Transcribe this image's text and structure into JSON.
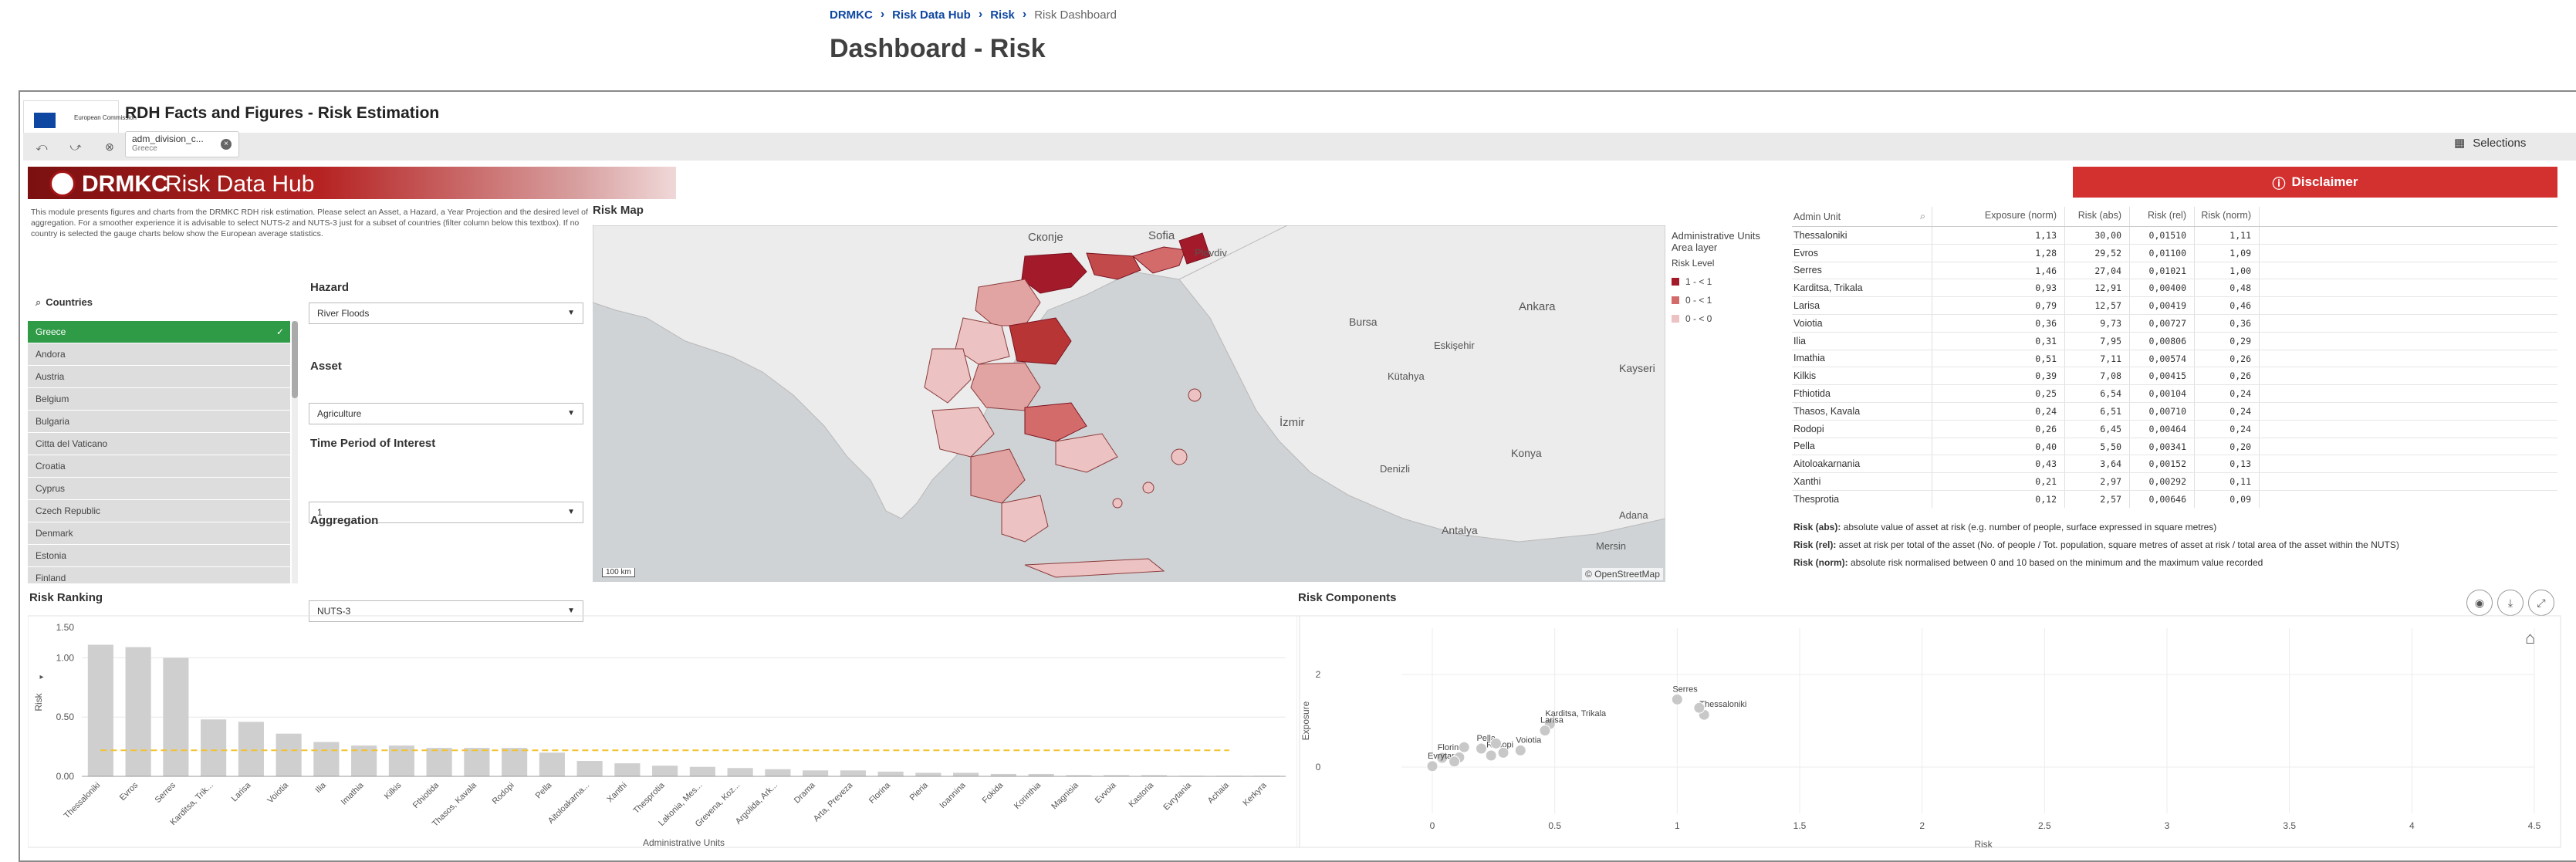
{
  "breadcrumb": {
    "items": [
      "DRMKC",
      "Risk Data Hub",
      "Risk"
    ],
    "current": "Risk Dashboard"
  },
  "page_title": "Dashboard - Risk",
  "app": {
    "title": "RDH Facts and Figures - Risk Estimation",
    "ec_label": "European Commission",
    "selection_chip": {
      "field": "adm_division_c...",
      "value": "Greece"
    },
    "selections_label": "Selections"
  },
  "banner": {
    "brand": "DRMKC",
    "name": "Risk Data Hub"
  },
  "disclaimer_label": "Disclaimer",
  "intro_text": "This module presents figures and charts from the DRMKC RDH risk estimation. Please select an Asset, a Hazard, a Year Projection and the desired level of aggregation. For a smoother experience it is advisable to select NUTS-2 and NUTS-3 just for a subset of countries (filter column below this textbox). If no country is selected the gauge charts below show the European average statistics.",
  "countries": {
    "label": "Countries",
    "items": [
      "Greece",
      "Andora",
      "Austria",
      "Belgium",
      "Bulgaria",
      "Citta del Vaticano",
      "Croatia",
      "Cyprus",
      "Czech Republic",
      "Denmark",
      "Estonia",
      "Finland"
    ],
    "selected": "Greece"
  },
  "filters": {
    "hazard": {
      "label": "Hazard",
      "value": "River Floods"
    },
    "asset": {
      "label": "Asset",
      "value": "Agriculture"
    },
    "time": {
      "label": "Time Period of Interest",
      "value": "1"
    },
    "aggregation": {
      "label": "Aggregation",
      "value": "NUTS-3"
    }
  },
  "map": {
    "title": "Risk Map",
    "legend_title": "Administrative Units Area layer",
    "legend_sub": "Risk Level",
    "legend_items": [
      {
        "label": "1 - < 1",
        "color": "#a31a2a"
      },
      {
        "label": "0 - < 1",
        "color": "#d46b6b"
      },
      {
        "label": "0 - < 0",
        "color": "#ecc2c2"
      }
    ],
    "attribution": "© OpenStreetMap",
    "scale": "100 km",
    "places": [
      "Скопje",
      "Sofia",
      "Plovdiv",
      "Ankara",
      "İzmir",
      "Bursa",
      "Kayseri",
      "Konya",
      "Antalya",
      "Adana",
      "Mersin",
      "Denizli",
      "Eskişehir",
      "Kütahya"
    ]
  },
  "table": {
    "headers": [
      "Admin Unit",
      "Exposure (norm)",
      "Risk (abs)",
      "Risk (rel)",
      "Risk (norm)"
    ],
    "rows": [
      [
        "Thessaloniki",
        "1,13",
        "30,00",
        "0,01510",
        "1,11"
      ],
      [
        "Evros",
        "1,28",
        "29,52",
        "0,01100",
        "1,09"
      ],
      [
        "Serres",
        "1,46",
        "27,04",
        "0,01021",
        "1,00"
      ],
      [
        "Karditsa, Trikala",
        "0,93",
        "12,91",
        "0,00400",
        "0,48"
      ],
      [
        "Larisa",
        "0,79",
        "12,57",
        "0,00419",
        "0,46"
      ],
      [
        "Voiotia",
        "0,36",
        "9,73",
        "0,00727",
        "0,36"
      ],
      [
        "Ilia",
        "0,31",
        "7,95",
        "0,00806",
        "0,29"
      ],
      [
        "Imathia",
        "0,51",
        "7,11",
        "0,00574",
        "0,26"
      ],
      [
        "Kilkis",
        "0,39",
        "7,08",
        "0,00415",
        "0,26"
      ],
      [
        "Fthiotida",
        "0,25",
        "6,54",
        "0,00104",
        "0,24"
      ],
      [
        "Thasos, Kavala",
        "0,24",
        "6,51",
        "0,00710",
        "0,24"
      ],
      [
        "Rodopi",
        "0,26",
        "6,45",
        "0,00464",
        "0,24"
      ],
      [
        "Pella",
        "0,40",
        "5,50",
        "0,00341",
        "0,20"
      ],
      [
        "Aitoloakarnania",
        "0,43",
        "3,64",
        "0,00152",
        "0,13"
      ],
      [
        "Xanthi",
        "0,21",
        "2,97",
        "0,00292",
        "0,11"
      ],
      [
        "Thesprotia",
        "0,12",
        "2,57",
        "0,00646",
        "0,09"
      ]
    ]
  },
  "notes": [
    {
      "term": "Risk (abs):",
      "text": " absolute value of asset at risk (e.g. number of people, surface expressed in square metres)"
    },
    {
      "term": "Risk (rel):",
      "text": " asset at risk per total of the asset (No. of people / Tot. population, square metres of asset at risk / total area of the asset within the NUTS)"
    },
    {
      "term": "Risk (norm):",
      "text": " absolute risk normalised between 0 and 10 based on the minimum and the maximum value recorded"
    }
  ],
  "chart_data": [
    {
      "type": "bar",
      "title": "Risk Ranking",
      "xlabel": "Administrative Units",
      "ylabel": "Risk",
      "ylim": [
        0,
        1.25
      ],
      "yticks": [
        "0.00",
        "0.50",
        "1.00"
      ],
      "yticks_extra": "1.50",
      "avg_line": 0.22,
      "categories": [
        "Thessaloniki",
        "Evros",
        "Serres",
        "Karditsa, Trik...",
        "Larisa",
        "Voiotia",
        "Ilia",
        "Imathia",
        "Kilkis",
        "Fthiotida",
        "Thasos, Kavala",
        "Rodopi",
        "Pella",
        "Aitoloakarna...",
        "Xanthi",
        "Thesprotia",
        "Lakonia, Mes...",
        "Grevena, Koz...",
        "Argolida, Ark...",
        "Drama",
        "Arta, Preveza",
        "Florina",
        "Pieria",
        "Ioannina",
        "Fokida",
        "Korinthia",
        "Magnisia",
        "Evvoia",
        "Kastoria",
        "Evrytania",
        "Achaia",
        "Kerkyra"
      ],
      "values": [
        1.11,
        1.09,
        1.0,
        0.48,
        0.46,
        0.36,
        0.29,
        0.26,
        0.26,
        0.24,
        0.24,
        0.24,
        0.2,
        0.13,
        0.11,
        0.09,
        0.08,
        0.07,
        0.06,
        0.05,
        0.05,
        0.04,
        0.03,
        0.03,
        0.02,
        0.02,
        0.01,
        0.01,
        0.01,
        0.0,
        0.0,
        0.0
      ]
    },
    {
      "type": "scatter",
      "title": "Risk Components",
      "xlabel": "Risk",
      "ylabel": "Exposure",
      "xlim": [
        0,
        4.5
      ],
      "xticks": [
        "0",
        "0.5",
        "1",
        "1.5",
        "2",
        "2.5",
        "3",
        "3.5",
        "4",
        "4.5"
      ],
      "yticks": [
        "0",
        "2"
      ],
      "ylim": [
        -1,
        3
      ],
      "points": [
        {
          "label": "Serres",
          "x": 1.0,
          "y": 1.46
        },
        {
          "label": "Thessaloniki",
          "x": 1.11,
          "y": 1.13
        },
        {
          "label": "",
          "x": 1.09,
          "y": 1.28
        },
        {
          "label": "Karditsa, Trikala",
          "x": 0.48,
          "y": 0.93
        },
        {
          "label": "Larisa",
          "x": 0.46,
          "y": 0.79
        },
        {
          "label": "Voiotia",
          "x": 0.36,
          "y": 0.36
        },
        {
          "label": "Pella",
          "x": 0.2,
          "y": 0.4
        },
        {
          "label": "Florina",
          "x": 0.04,
          "y": 0.2
        },
        {
          "label": "Rodopi",
          "x": 0.24,
          "y": 0.26
        },
        {
          "label": "Evrytania",
          "x": 0.0,
          "y": 0.02
        },
        {
          "label": "",
          "x": 0.29,
          "y": 0.31
        },
        {
          "label": "",
          "x": 0.26,
          "y": 0.51
        },
        {
          "label": "",
          "x": 0.24,
          "y": 0.25
        },
        {
          "label": "",
          "x": 0.13,
          "y": 0.43
        },
        {
          "label": "",
          "x": 0.11,
          "y": 0.21
        },
        {
          "label": "",
          "x": 0.09,
          "y": 0.12
        }
      ]
    }
  ]
}
